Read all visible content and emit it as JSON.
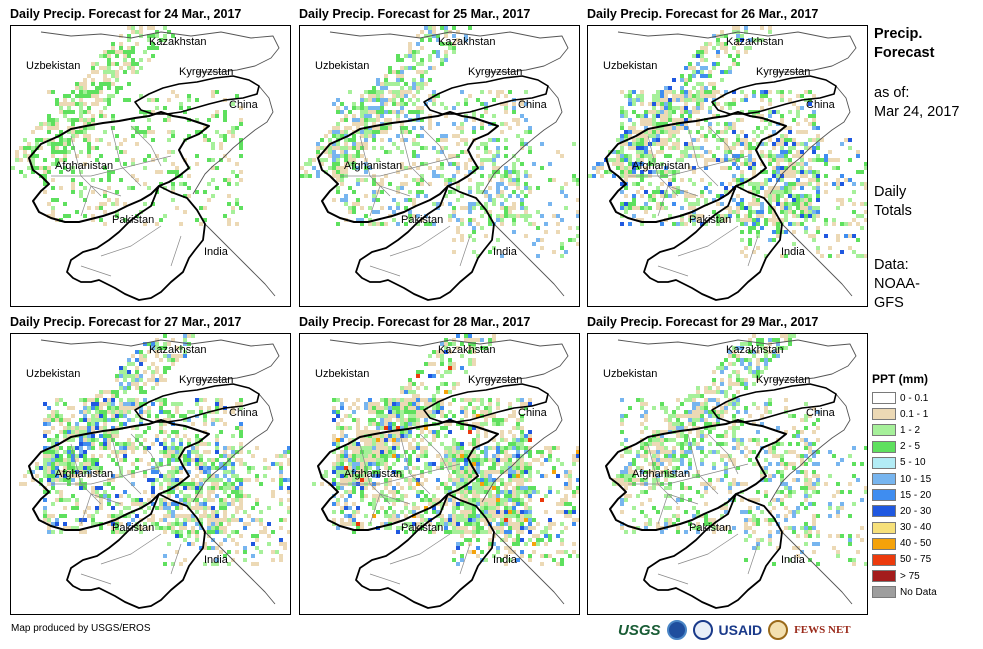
{
  "panels": [
    {
      "title": "Daily Precip. Forecast for 24 Mar., 2017",
      "intensity": 0
    },
    {
      "title": "Daily Precip. Forecast for 25 Mar., 2017",
      "intensity": 1
    },
    {
      "title": "Daily Precip. Forecast for 26 Mar., 2017",
      "intensity": 2
    },
    {
      "title": "Daily Precip. Forecast for 27 Mar., 2017",
      "intensity": 2
    },
    {
      "title": "Daily Precip. Forecast for 28 Mar., 2017",
      "intensity": 3
    },
    {
      "title": "Daily Precip. Forecast for 29 Mar., 2017",
      "intensity": 1
    }
  ],
  "map_labels": {
    "kazakhstan": "Kazakhstan",
    "uzbekistan": "Uzbekistan",
    "kyrgyzstan": "Kyrgyzstan",
    "china": "China",
    "afghanistan": "Afghanistan",
    "pakistan": "Pakistan",
    "india": "India"
  },
  "sidebar": {
    "title_line1": "Precip.",
    "title_line2": "Forecast",
    "asof_line1": "as of:",
    "asof_line2": "Mar 24, 2017",
    "totals_line1": "Daily",
    "totals_line2": "Totals",
    "data_line1": "Data:",
    "data_line2": "NOAA-",
    "data_line3": "GFS"
  },
  "legend": {
    "title": "PPT (mm)",
    "items": [
      {
        "label": "0 - 0.1",
        "color": "#ffffff"
      },
      {
        "label": "0.1 - 1",
        "color": "#ecd9b5"
      },
      {
        "label": "1 - 2",
        "color": "#a6f09a"
      },
      {
        "label": "2 - 5",
        "color": "#5ee05e"
      },
      {
        "label": "5 - 10",
        "color": "#b3ecf5"
      },
      {
        "label": "10 - 15",
        "color": "#77b5ef"
      },
      {
        "label": "15 - 20",
        "color": "#3f8df0"
      },
      {
        "label": "20 - 30",
        "color": "#1f58e0"
      },
      {
        "label": "30 - 40",
        "color": "#f6e07a"
      },
      {
        "label": "40 - 50",
        "color": "#f5a20a"
      },
      {
        "label": "50 - 75",
        "color": "#ec3a0c"
      },
      {
        "label": "> 75",
        "color": "#a41c1c"
      },
      {
        "label": "No Data",
        "color": "#9e9e9e"
      }
    ]
  },
  "credit": "Map produced by USGS/EROS",
  "logos": {
    "usgs": "USGS",
    "usaid": "USAID",
    "fews": "FEWS NET"
  }
}
